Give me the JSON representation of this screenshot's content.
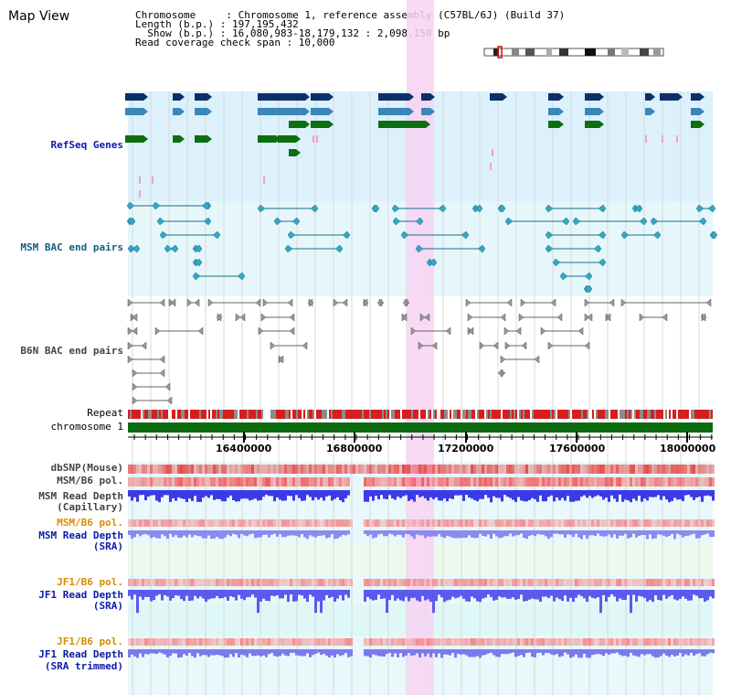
{
  "app": {
    "title": "Map View"
  },
  "header": {
    "rows": [
      "Chromosome     : Chromosome 1, reference assembly (C57BL/6J) (Build 37)",
      "Length (b.p.) : 197,195,432",
      "  Show (b.p.) : 16,080,983-18,179,132 : 2,098,150 bp",
      "Read coverage check span : 10,000"
    ]
  },
  "tracks": {
    "refseq": "RefSeq Genes",
    "msm_bac": "MSM BAC end pairs",
    "b6n_bac": "B6N BAC end pairs",
    "repeat": "Repeat",
    "chromosome": "chromosome 1",
    "dbsnp": "dbSNP(Mouse)",
    "msm_b6_pol_1": "MSM/B6 pol.",
    "msm_read_depth_cap_1": "MSM Read Depth",
    "msm_read_depth_cap_2": "(Capillary)",
    "msm_b6_pol_2": "MSM/B6 pol.",
    "msm_read_depth_sra_1": "MSM Read Depth",
    "msm_read_depth_sra_2": "(SRA)",
    "jf1_b6_pol_1": "JF1/B6 pol.",
    "jf1_read_depth_sra_1": "JF1 Read Depth",
    "jf1_read_depth_sra_2": "(SRA)",
    "jf1_b6_pol_2": "JF1/B6 pol.",
    "jf1_read_depth_trim_1": "JF1 Read Depth",
    "jf1_read_depth_trim_2": "(SRA trimmed)"
  },
  "axis": {
    "ticks": [
      "16400000",
      "16800000",
      "17200000",
      "17600000",
      "18000000"
    ]
  },
  "colors": {
    "refseq_dark": "#0c2f6b",
    "refseq_light": "#3a86b8",
    "refseq_green": "#0e6e12",
    "refseq_bg": "#dcf1fb",
    "msm_bg": "#e6f7fb",
    "b6n_bg": "#ffffff",
    "highlight": "#f7d3f3",
    "chromosome": "#0c6b10",
    "snp": "#e64c4c",
    "pol": "#f06060",
    "depth": "#3a3ae8",
    "depth_light": "#8a8af0"
  }
}
